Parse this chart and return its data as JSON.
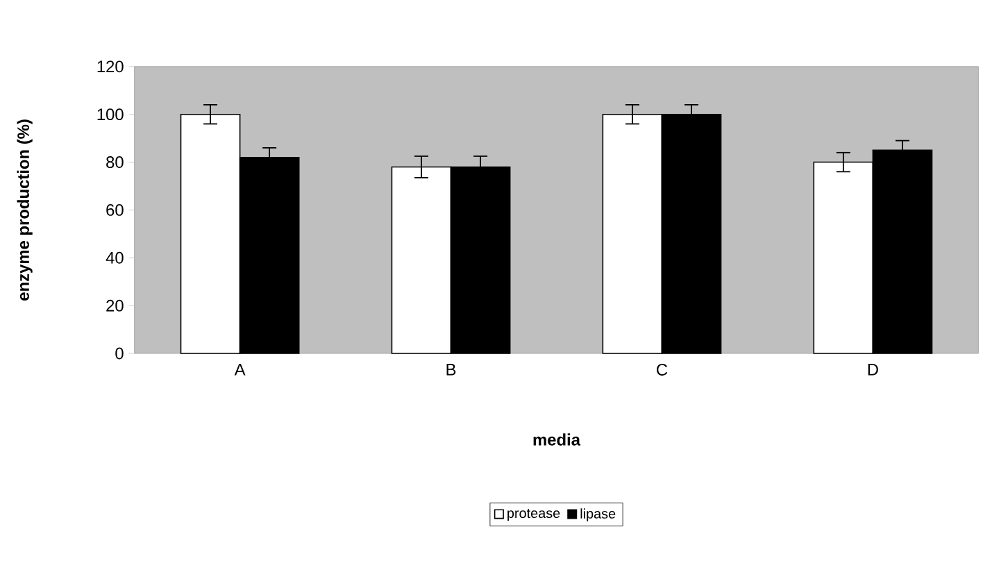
{
  "chart_data": {
    "type": "bar",
    "xlabel": "media",
    "ylabel": "enzyme production (%)",
    "categories": [
      "A",
      "B",
      "C",
      "D"
    ],
    "series": [
      {
        "name": "protease",
        "color": "#ffffff",
        "values": [
          100,
          78,
          100,
          80
        ],
        "errors": [
          4,
          4.5,
          4,
          4
        ]
      },
      {
        "name": "lipase",
        "color": "#000000",
        "values": [
          82,
          78,
          100,
          85
        ],
        "errors": [
          4,
          4.5,
          4,
          4
        ]
      }
    ],
    "ylim": [
      0,
      120
    ],
    "yticks": [
      0,
      20,
      40,
      60,
      80,
      100,
      120
    ],
    "grid": false,
    "legend": "bottom"
  }
}
